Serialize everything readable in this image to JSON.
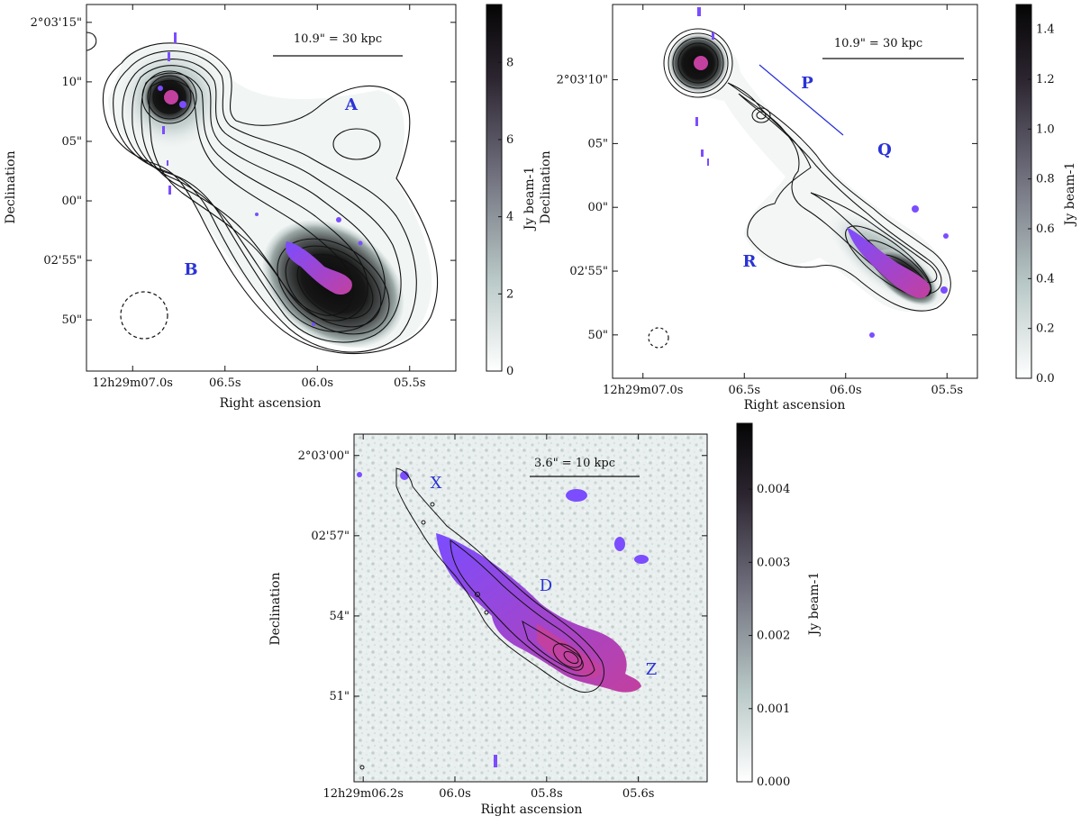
{
  "figure": {
    "description_panels": 3
  },
  "colors": {
    "jet_purple": "#7b4dff",
    "jet_magenta": "#c2409f",
    "label_blue": "#2a33d6",
    "contour": "#111111"
  },
  "chart_data": [
    {
      "id": "top-left",
      "type": "heatmap",
      "xlabel": "Right ascension",
      "ylabel": "Declination",
      "colorbar_label": "Jy beam-1",
      "colorbar_range": [
        0,
        9.5
      ],
      "colorbar_ticks": [
        "0",
        "2",
        "4",
        "6",
        "8"
      ],
      "colorbar_tick_values": [
        0,
        2,
        4,
        6,
        8
      ],
      "x_ticks": [
        "12h29m07.0s",
        "06.5s",
        "06.0s",
        "05.5s"
      ],
      "x_tick_values": [
        7.0,
        6.5,
        6.0,
        5.5
      ],
      "x_range": [
        7.25,
        5.25
      ],
      "y_ticks": [
        "2°03'15\"",
        "10\"",
        "05\"",
        "00\"",
        "02'55\"",
        "50\""
      ],
      "y_tick_values": [
        15,
        10,
        5,
        0,
        -5,
        -10
      ],
      "y_range": [
        -14.3,
        16.5
      ],
      "scalebar_label": "10.9\" = 30 kpc",
      "annotations": [
        "A",
        "B"
      ],
      "beam": "dashed circle, bottom-left"
    },
    {
      "id": "top-right",
      "type": "heatmap",
      "xlabel": "Right ascension",
      "ylabel": "Declination",
      "colorbar_label": "Jy beam-1",
      "colorbar_range": [
        0,
        1.5
      ],
      "colorbar_ticks": [
        "0.0",
        "0.2",
        "0.4",
        "0.6",
        "0.8",
        "1.0",
        "1.2",
        "1.4"
      ],
      "colorbar_tick_values": [
        0,
        0.2,
        0.4,
        0.6,
        0.8,
        1.0,
        1.2,
        1.4
      ],
      "x_ticks": [
        "12h29m07.0s",
        "06.5s",
        "06.0s",
        "05.5s"
      ],
      "x_tick_values": [
        7.0,
        6.5,
        6.0,
        5.5
      ],
      "x_range": [
        7.15,
        5.35
      ],
      "y_ticks": [
        "2°03'10\"",
        "05\"",
        "00\"",
        "02'55\"",
        "50\""
      ],
      "y_tick_values": [
        10,
        5,
        0,
        -5,
        -10
      ],
      "y_range": [
        -13.4,
        15.9
      ],
      "scalebar_label": "10.9\" = 30 kpc",
      "annotations": [
        "P",
        "Q",
        "R"
      ],
      "beam": "dashed circle, bottom-left"
    },
    {
      "id": "bottom",
      "type": "heatmap",
      "xlabel": "Right ascension",
      "ylabel": "Declination",
      "colorbar_label": "Jy beam-1",
      "colorbar_range": [
        0,
        0.0049
      ],
      "colorbar_ticks": [
        "0.000",
        "0.001",
        "0.002",
        "0.003",
        "0.004"
      ],
      "colorbar_tick_values": [
        0,
        0.001,
        0.002,
        0.003,
        0.004
      ],
      "x_ticks": [
        "12h29m06.2s",
        "06.0s",
        "05.8s",
        "05.6s"
      ],
      "x_tick_values": [
        6.2,
        6.0,
        5.8,
        5.6
      ],
      "x_range": [
        6.22,
        5.45
      ],
      "y_ticks": [
        "2°03'00\"",
        "02'57\"",
        "54\"",
        "51\""
      ],
      "y_tick_values": [
        60,
        57,
        54,
        51
      ],
      "y_range": [
        47.8,
        60.8
      ],
      "scalebar_label": "3.6\" = 10 kpc",
      "annotations": [
        "X",
        "D",
        "Z"
      ]
    }
  ]
}
